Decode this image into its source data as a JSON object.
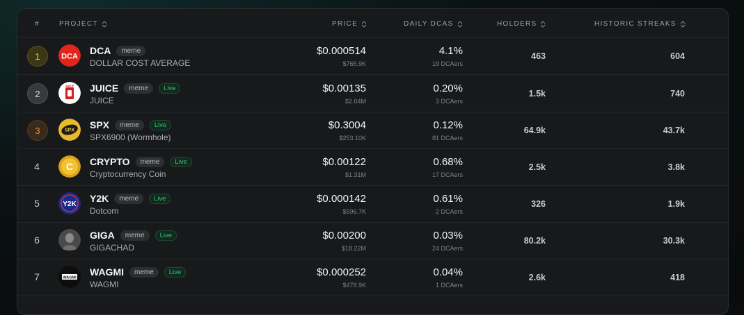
{
  "header": {
    "rank": "#",
    "project": "PROJECT",
    "price": "PRICE",
    "daily_dcas": "DAILY DCAS",
    "holders": "HOLDERS",
    "streaks": "HISTORIC STREAKS"
  },
  "badges": {
    "meme": "meme",
    "live": "Live"
  },
  "colors": {
    "accent_live": "#36c27c",
    "rank_gold": "#e6c94a",
    "rank_bronze": "#e58a3a",
    "panel": "#17191b"
  },
  "rows": [
    {
      "rank": "1",
      "symbol": "DCA",
      "name": "DOLLAR COST AVERAGE",
      "logo_text": "DCA",
      "live": false,
      "price": "$0.000514",
      "mcap": "$765.9K",
      "pct": "4.1%",
      "dcaers": "19 DCAers",
      "holders": "463",
      "streaks": "604"
    },
    {
      "rank": "2",
      "symbol": "JUICE",
      "name": "JUICE",
      "logo_text": "JUICE",
      "live": true,
      "price": "$0.00135",
      "mcap": "$2.04M",
      "pct": "0.20%",
      "dcaers": "3 DCAers",
      "holders": "1.5k",
      "streaks": "740"
    },
    {
      "rank": "3",
      "symbol": "SPX",
      "name": "SPX6900 (Wormhole)",
      "logo_text": "SPX",
      "live": true,
      "price": "$0.3004",
      "mcap": "$253.10K",
      "pct": "0.12%",
      "dcaers": "81 DCAers",
      "holders": "64.9k",
      "streaks": "43.7k"
    },
    {
      "rank": "4",
      "symbol": "CRYPTO",
      "name": "Cryptocurrency Coin",
      "logo_text": "C",
      "live": true,
      "price": "$0.00122",
      "mcap": "$1.31M",
      "pct": "0.68%",
      "dcaers": "17 DCAers",
      "holders": "2.5k",
      "streaks": "3.8k"
    },
    {
      "rank": "5",
      "symbol": "Y2K",
      "name": "Dotcom",
      "logo_text": "Y2K",
      "live": true,
      "price": "$0.000142",
      "mcap": "$596.7K",
      "pct": "0.61%",
      "dcaers": "2 DCAers",
      "holders": "326",
      "streaks": "1.9k"
    },
    {
      "rank": "6",
      "symbol": "GIGA",
      "name": "GIGACHAD",
      "logo_text": "",
      "live": true,
      "price": "$0.00200",
      "mcap": "$18.22M",
      "pct": "0.03%",
      "dcaers": "24 DCAers",
      "holders": "80.2k",
      "streaks": "30.3k"
    },
    {
      "rank": "7",
      "symbol": "WAGMI",
      "name": "WAGMI",
      "logo_text": "WAGMI",
      "live": true,
      "price": "$0.000252",
      "mcap": "$478.9K",
      "pct": "0.04%",
      "dcaers": "1 DCAers",
      "holders": "2.6k",
      "streaks": "418"
    }
  ]
}
